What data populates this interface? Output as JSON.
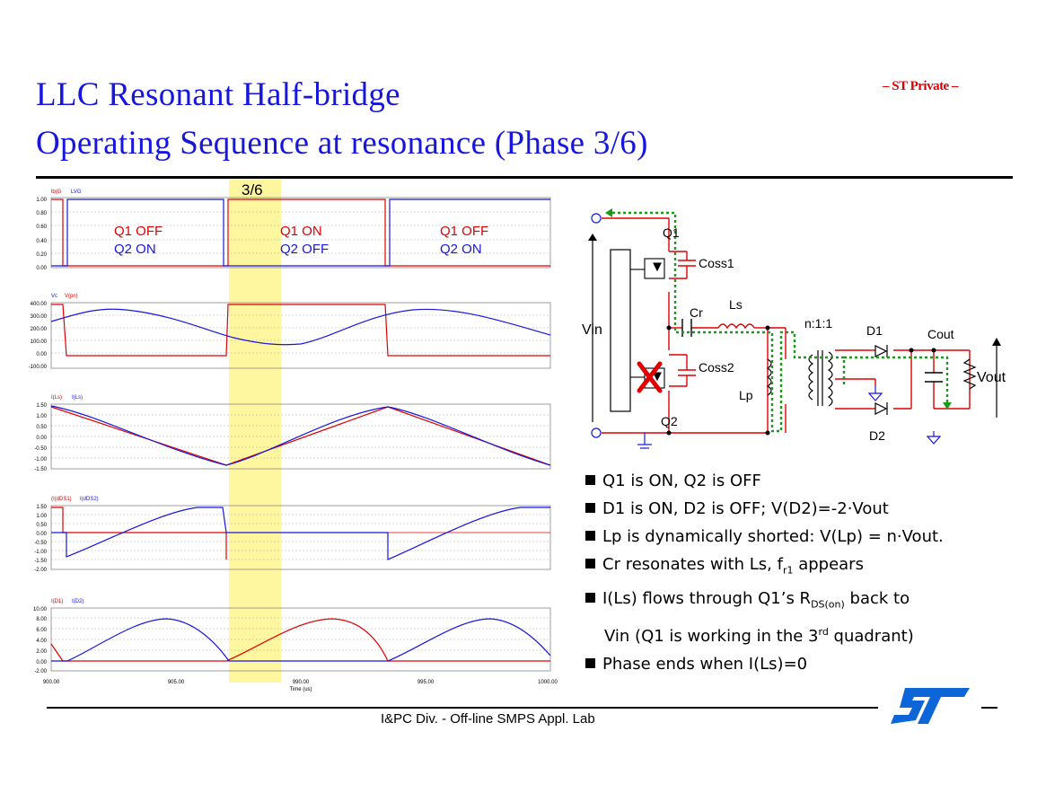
{
  "title": {
    "line1": "LLC Resonant Half-bridge",
    "line2": "Operating Sequence at resonance (Phase 3/6)"
  },
  "badge": "– ST Private –",
  "footer": "I&PC Div. - Off-line SMPS Appl. Lab",
  "phase_label": "3/6",
  "waveforms": {
    "panel1": {
      "legend": [
        "lb(G",
        "LVG"
      ],
      "ticks": [
        "1.00",
        "0.80",
        "0.60",
        "0.40",
        "0.20",
        "0.00"
      ],
      "states": [
        {
          "q1": "Q1 OFF",
          "q2": "Q2 ON"
        },
        {
          "q1": "Q1 ON",
          "q2": "Q2 OFF"
        },
        {
          "q1": "Q1 OFF",
          "q2": "Q2 ON"
        }
      ]
    },
    "panel2": {
      "legend": [
        "Vc",
        "V(pn)"
      ],
      "ticks": [
        "400.00",
        "300.00",
        "200.00",
        "100.00",
        "0.00",
        "-100.00"
      ]
    },
    "panel3": {
      "legend": [
        "I(Ls)",
        "I(Ls)"
      ],
      "ticks": [
        "1.50",
        "1.00",
        "0.50",
        "0.00",
        "-0.50",
        "-1.00",
        "-1.50"
      ]
    },
    "panel4": {
      "legend": [
        "(I(dDS1)",
        "I(dDS2)"
      ],
      "ticks": [
        "1.50",
        "1.00",
        "0.50",
        "0.00",
        "-0.50",
        "-1.00",
        "-1.50",
        "-2.00"
      ]
    },
    "panel5": {
      "legend": [
        "I(D1)",
        "I(D2)"
      ],
      "ticks": [
        "10.00",
        "8.00",
        "6.00",
        "4.00",
        "2.00",
        "0.00",
        "-2.00"
      ]
    },
    "x_ticks": [
      "900.00",
      "905.00",
      "990.00",
      "995.00",
      "1000.00"
    ],
    "x_label": "Time (us)"
  },
  "circuit": {
    "vin": "Vin",
    "q1": "Q1",
    "q2": "Q2",
    "coss1": "Coss1",
    "coss2": "Coss2",
    "cr": "Cr",
    "ls": "Ls",
    "lp": "Lp",
    "ratio": "n:1:1",
    "d1": "D1",
    "d2": "D2",
    "cout": "Cout",
    "vout": "Vout"
  },
  "bullets": [
    "Q1 is ON, Q2 is OFF",
    "D1 is ON, D2 is OFF; V(D2)=-2·Vout",
    "Lp is dynamically shorted: V(Lp) = n·Vout.",
    {
      "pre": "Cr resonates with Ls, f",
      "sub": "r1",
      "post": " appears"
    },
    {
      "pre": "I(Ls) flows through Q1’s R",
      "sub": "DS(on)",
      "post": " back to"
    },
    {
      "pre": "Vin (Q1 is working in the 3",
      "sup": "rd",
      "post": " quadrant)"
    },
    "Phase ends when I(Ls)=0"
  ],
  "colors": {
    "title": "#1616e0",
    "red": "#e00000",
    "blue": "#1616e0",
    "green": "#1a9a1a",
    "highlight": "#fff7a0"
  }
}
